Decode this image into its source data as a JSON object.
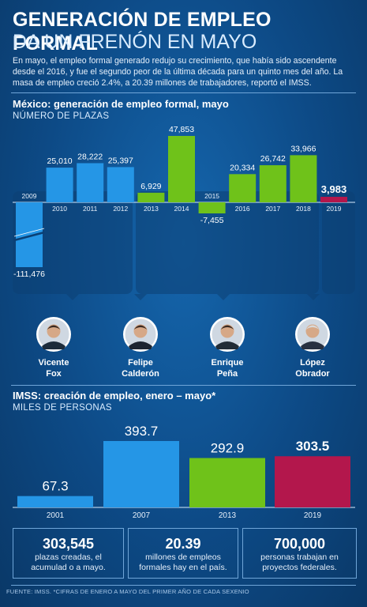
{
  "header": {
    "title_line1": "GENERACIÓN DE EMPLEO FORMAL",
    "title_line2": "DA UN FRENÓN EN MAYO",
    "intro": "En mayo, el empleo formal generado redujo su crecimiento, que había sido ascendente desde el 2016, y fue el segundo peor de la última década para un quinto mes del año. La masa de empleo creció 2.4%, a 20.39 millones de trabajadores, reportó el IMSS."
  },
  "colors": {
    "blue_bar": "#2596e6",
    "green_bar": "#6fc21a",
    "red_bar": "#b3174c",
    "background": "#0d4a86"
  },
  "presidents": [
    {
      "name_line1": "Vicente",
      "name_line2": "Fox",
      "icon": "portrait-icon"
    },
    {
      "name_line1": "Felipe",
      "name_line2": "Calderón",
      "icon": "portrait-icon"
    },
    {
      "name_line1": "Enrique",
      "name_line2": "Peña",
      "icon": "portrait-icon"
    },
    {
      "name_line1": "López",
      "name_line2": "Obrador",
      "icon": "portrait-icon"
    }
  ],
  "chart_data": [
    {
      "type": "bar",
      "title": "México: generación de empleo formal, mayo",
      "subtitle": "NÚMERO DE PLAZAS",
      "categories": [
        "2009",
        "2010",
        "2011",
        "2012",
        "2013",
        "2014",
        "2015",
        "2016",
        "2017",
        "2018",
        "2019"
      ],
      "values": [
        -111476,
        25010,
        28222,
        25397,
        6929,
        47853,
        -7455,
        20334,
        26742,
        33966,
        3983
      ],
      "value_labels": [
        "-111,476",
        "25,010",
        "28,222",
        "25,397",
        "6,929",
        "47,853",
        "-7,455",
        "20,334",
        "26,742",
        "33,966",
        "3,983"
      ],
      "bar_groups": [
        "calderon",
        "calderon",
        "calderon",
        "calderon",
        "pena",
        "pena",
        "pena",
        "pena",
        "pena",
        "pena",
        "amlo"
      ],
      "ylim": [
        -111476,
        47853
      ],
      "axis_break": true,
      "xlabel": "",
      "ylabel": ""
    },
    {
      "type": "bar",
      "title": "IMSS: creación de empleo, enero – mayo*",
      "subtitle": "MILES DE PERSONAS",
      "categories": [
        "2001",
        "2007",
        "2013",
        "2019"
      ],
      "values": [
        67.3,
        393.7,
        292.9,
        303.5
      ],
      "value_labels": [
        "67.3",
        "393.7",
        "292.9",
        "303.5"
      ],
      "bar_groups": [
        "fox",
        "calderon",
        "pena",
        "amlo"
      ],
      "ylim": [
        0,
        393.7
      ],
      "xlabel": "",
      "ylabel": ""
    }
  ],
  "stats": [
    {
      "value": "303,545",
      "label": "plazas creadas, el acumulad o a mayo."
    },
    {
      "value": "20.39",
      "label": "millones de empleos formales hay en el país."
    },
    {
      "value": "700,000",
      "label": "personas trabajan en proyectos federales."
    }
  ],
  "footer": {
    "source": "FUENTE: IMSS.  *CIFRAS DE ENERO A MAYO DEL PRIMER AÑO DE CADA SEXENIO"
  }
}
